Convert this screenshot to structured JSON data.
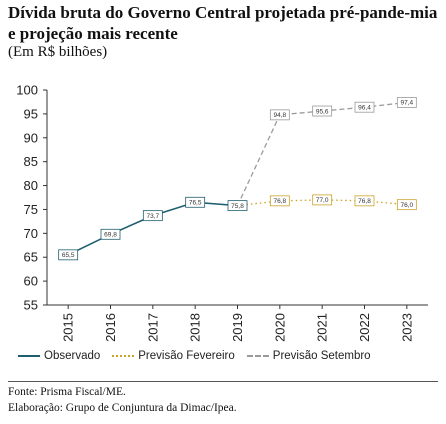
{
  "title": "Dívida bruta do Governo Central projetada pré-pande-mia e projeção mais recente",
  "subtitle": "(Em R$ bilhões)",
  "source": "Fonte: Prisma Fiscal/ME.",
  "credit": "Elaboração: Grupo de Conjuntura da Dimac/Ipea.",
  "chart_data": {
    "type": "line",
    "categories": [
      "2015",
      "2016",
      "2017",
      "2018",
      "2019",
      "2020",
      "2021",
      "2022",
      "2023"
    ],
    "ylim": [
      55,
      100
    ],
    "yticks": [
      55,
      60,
      65,
      70,
      75,
      80,
      85,
      90,
      95,
      100
    ],
    "grid": false,
    "legend_position": "bottom",
    "series": [
      {
        "name": "Observado",
        "color": "#1f5f6f",
        "style": "solid",
        "labels_prefix": "obs",
        "values": [
          65.5,
          69.8,
          73.7,
          76.5,
          75.8,
          null,
          null,
          null,
          null
        ],
        "labels": [
          "65,5",
          "69,8",
          "73,7",
          "76,5",
          "75,8",
          null,
          null,
          null,
          null
        ]
      },
      {
        "name": "Previsão Fevereiro",
        "color": "#c9a227",
        "style": "dotted",
        "values": [
          null,
          null,
          null,
          null,
          75.8,
          76.8,
          77.0,
          76.8,
          76.0
        ],
        "labels": [
          null,
          null,
          null,
          null,
          null,
          "76,8",
          "77,0",
          "76,8",
          "76,0"
        ]
      },
      {
        "name": "Previsão Setembro",
        "color": "#9a9a9a",
        "style": "dashed",
        "values": [
          null,
          null,
          null,
          null,
          75.8,
          94.8,
          95.6,
          96.4,
          97.4
        ],
        "labels": [
          null,
          null,
          null,
          null,
          null,
          "94,8",
          "95,6",
          "96,4",
          "97,4"
        ]
      }
    ]
  },
  "legend": [
    "Observado",
    "Previsão Fevereiro",
    "Previsão Setembro"
  ]
}
